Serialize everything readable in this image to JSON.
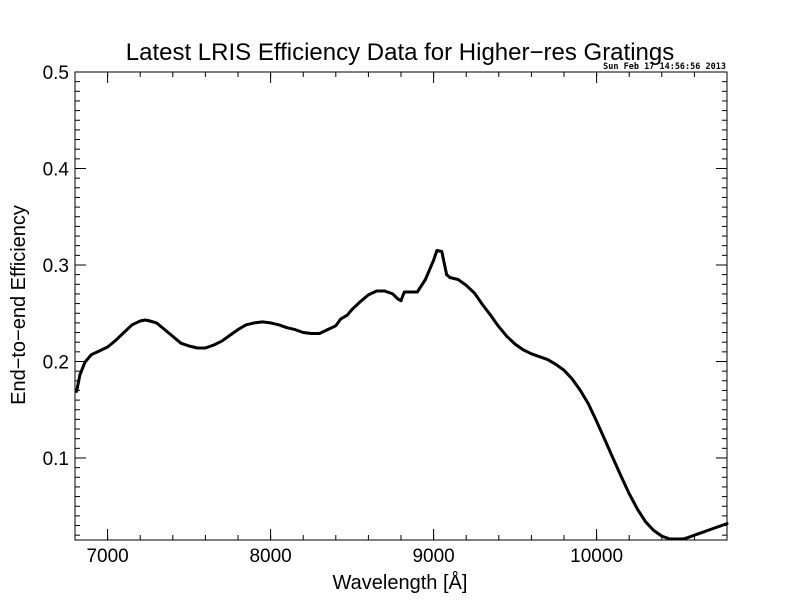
{
  "chart_data": {
    "type": "line",
    "title": "Latest LRIS Efficiency Data for Higher−res Gratings",
    "timestamp": "Sun Feb 17 14:56:56 2013",
    "xlabel": "Wavelength [Å]",
    "ylabel": "End−to−end Efficiency",
    "xlim": [
      6800,
      10800
    ],
    "ylim": [
      0.015,
      0.5
    ],
    "x_ticks": [
      {
        "value": 7000,
        "label": "7000"
      },
      {
        "value": 8000,
        "label": "8000"
      },
      {
        "value": 9000,
        "label": "9000"
      },
      {
        "value": 10000,
        "label": "10000"
      }
    ],
    "y_ticks": [
      {
        "value": 0.1,
        "label": "0.1"
      },
      {
        "value": 0.2,
        "label": "0.2"
      },
      {
        "value": 0.3,
        "label": "0.3"
      },
      {
        "value": 0.4,
        "label": "0.4"
      },
      {
        "value": 0.5,
        "label": "0.5"
      }
    ],
    "x_minor_step": 200,
    "y_minor_step": 0.01,
    "grid": false,
    "legend": "none",
    "line_color": "#000000",
    "series": [
      {
        "x": [
          6810,
          6830,
          6860,
          6900,
          6950,
          7000,
          7050,
          7100,
          7150,
          7200,
          7230,
          7260,
          7300,
          7350,
          7400,
          7450,
          7500,
          7550,
          7600,
          7650,
          7700,
          7750,
          7800,
          7850,
          7900,
          7950,
          8000,
          8050,
          8100,
          8150,
          8200,
          8250,
          8300,
          8350,
          8400,
          8430,
          8470,
          8500,
          8550,
          8600,
          8650,
          8700,
          8750,
          8780,
          8800,
          8820,
          8850,
          8900,
          8950,
          9000,
          9020,
          9050,
          9080,
          9100,
          9150,
          9200,
          9250,
          9300,
          9350,
          9400,
          9450,
          9500,
          9550,
          9600,
          9650,
          9700,
          9750,
          9800,
          9850,
          9900,
          9950,
          10000,
          10050,
          10100,
          10150,
          10200,
          10250,
          10300,
          10350,
          10400,
          10450,
          10500,
          10530,
          10550,
          10600,
          10650,
          10700,
          10750,
          10800
        ],
        "y": [
          0.169,
          0.186,
          0.199,
          0.207,
          0.211,
          0.215,
          0.222,
          0.23,
          0.238,
          0.242,
          0.243,
          0.242,
          0.24,
          0.233,
          0.226,
          0.219,
          0.216,
          0.214,
          0.214,
          0.217,
          0.221,
          0.227,
          0.233,
          0.238,
          0.24,
          0.241,
          0.24,
          0.238,
          0.235,
          0.233,
          0.23,
          0.229,
          0.229,
          0.233,
          0.237,
          0.244,
          0.248,
          0.254,
          0.262,
          0.269,
          0.273,
          0.273,
          0.27,
          0.265,
          0.263,
          0.272,
          0.272,
          0.272,
          0.285,
          0.305,
          0.315,
          0.314,
          0.29,
          0.287,
          0.285,
          0.279,
          0.271,
          0.259,
          0.248,
          0.236,
          0.226,
          0.218,
          0.212,
          0.208,
          0.205,
          0.202,
          0.197,
          0.191,
          0.182,
          0.17,
          0.156,
          0.138,
          0.119,
          0.1,
          0.081,
          0.063,
          0.047,
          0.034,
          0.025,
          0.019,
          0.016,
          0.016,
          0.016,
          0.017,
          0.02,
          0.023,
          0.026,
          0.029,
          0.032
        ]
      }
    ]
  }
}
